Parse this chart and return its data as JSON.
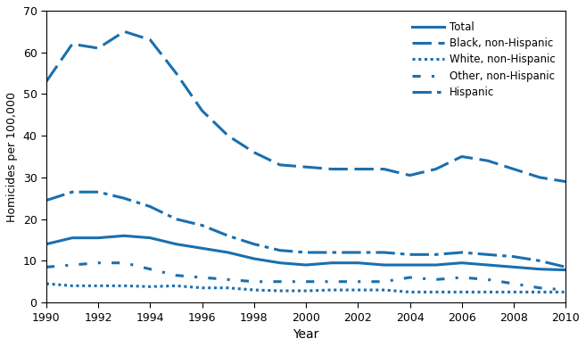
{
  "years": [
    1990,
    1991,
    1992,
    1993,
    1994,
    1995,
    1996,
    1997,
    1998,
    1999,
    2000,
    2001,
    2002,
    2003,
    2004,
    2005,
    2006,
    2007,
    2008,
    2009,
    2010
  ],
  "total": [
    14.0,
    15.5,
    15.5,
    16.0,
    15.5,
    14.0,
    13.0,
    12.0,
    10.5,
    9.5,
    9.0,
    9.5,
    9.5,
    9.0,
    9.0,
    9.0,
    9.5,
    9.0,
    8.5,
    8.0,
    7.8
  ],
  "black": [
    53.0,
    62.0,
    61.0,
    65.0,
    63.0,
    55.0,
    46.0,
    40.0,
    36.0,
    33.0,
    32.5,
    32.0,
    32.0,
    32.0,
    30.5,
    32.0,
    35.0,
    34.0,
    32.0,
    30.0,
    29.0
  ],
  "white": [
    4.5,
    4.0,
    4.0,
    4.0,
    3.8,
    4.0,
    3.5,
    3.5,
    3.0,
    2.8,
    2.8,
    3.0,
    3.0,
    3.0,
    2.5,
    2.5,
    2.5,
    2.5,
    2.5,
    2.5,
    2.5
  ],
  "other": [
    8.5,
    9.0,
    9.5,
    9.5,
    8.0,
    6.5,
    6.0,
    5.5,
    5.0,
    5.0,
    5.0,
    5.0,
    5.0,
    5.0,
    6.0,
    5.5,
    6.0,
    5.5,
    4.5,
    3.5,
    3.0
  ],
  "hispanic": [
    24.5,
    26.5,
    26.5,
    25.0,
    23.0,
    20.0,
    18.5,
    16.0,
    14.0,
    12.5,
    12.0,
    12.0,
    12.0,
    12.0,
    11.5,
    11.5,
    12.0,
    11.5,
    11.0,
    10.0,
    8.5
  ],
  "color": "#1a6faf",
  "ylim": [
    0,
    70
  ],
  "yticks": [
    0,
    10,
    20,
    30,
    40,
    50,
    60,
    70
  ],
  "xticks": [
    1990,
    1992,
    1994,
    1996,
    1998,
    2000,
    2002,
    2004,
    2006,
    2008,
    2010
  ],
  "xlabel": "Year",
  "ylabel": "Homicides per 100,000",
  "legend_labels": [
    "Total",
    "Black, non-Hispanic",
    "White, non-Hispanic",
    "Other, non-Hispanic",
    "Hispanic"
  ]
}
